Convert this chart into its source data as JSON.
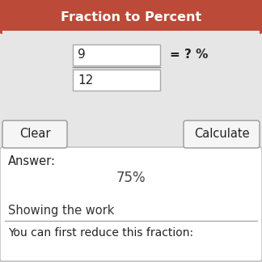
{
  "title": "Fraction to Percent",
  "title_bg_color": "#bc4a38",
  "title_text_color": "#ffffff",
  "bg_color": "#e6e6e6",
  "outer_bg_color": "#e6e6e6",
  "numerator": "9",
  "denominator": "12",
  "equals_text": "= ? %",
  "button_clear": "Clear",
  "button_calculate": "Calculate",
  "answer_label": "Answer:",
  "answer_value": "75%",
  "showing_work_label": "Showing the work",
  "bottom_text": "You can first reduce this fraction:",
  "input_box_color": "#ffffff",
  "input_border_color": "#aaaaaa",
  "button_bg_color": "#f5f5f5",
  "button_border_color": "#999999",
  "answer_box_color": "#ffffff",
  "answer_box_border_color": "#bbbbbb",
  "text_color": "#222222",
  "answer_color": "#444444",
  "showing_work_color": "#333333",
  "separator_color": "#999999"
}
